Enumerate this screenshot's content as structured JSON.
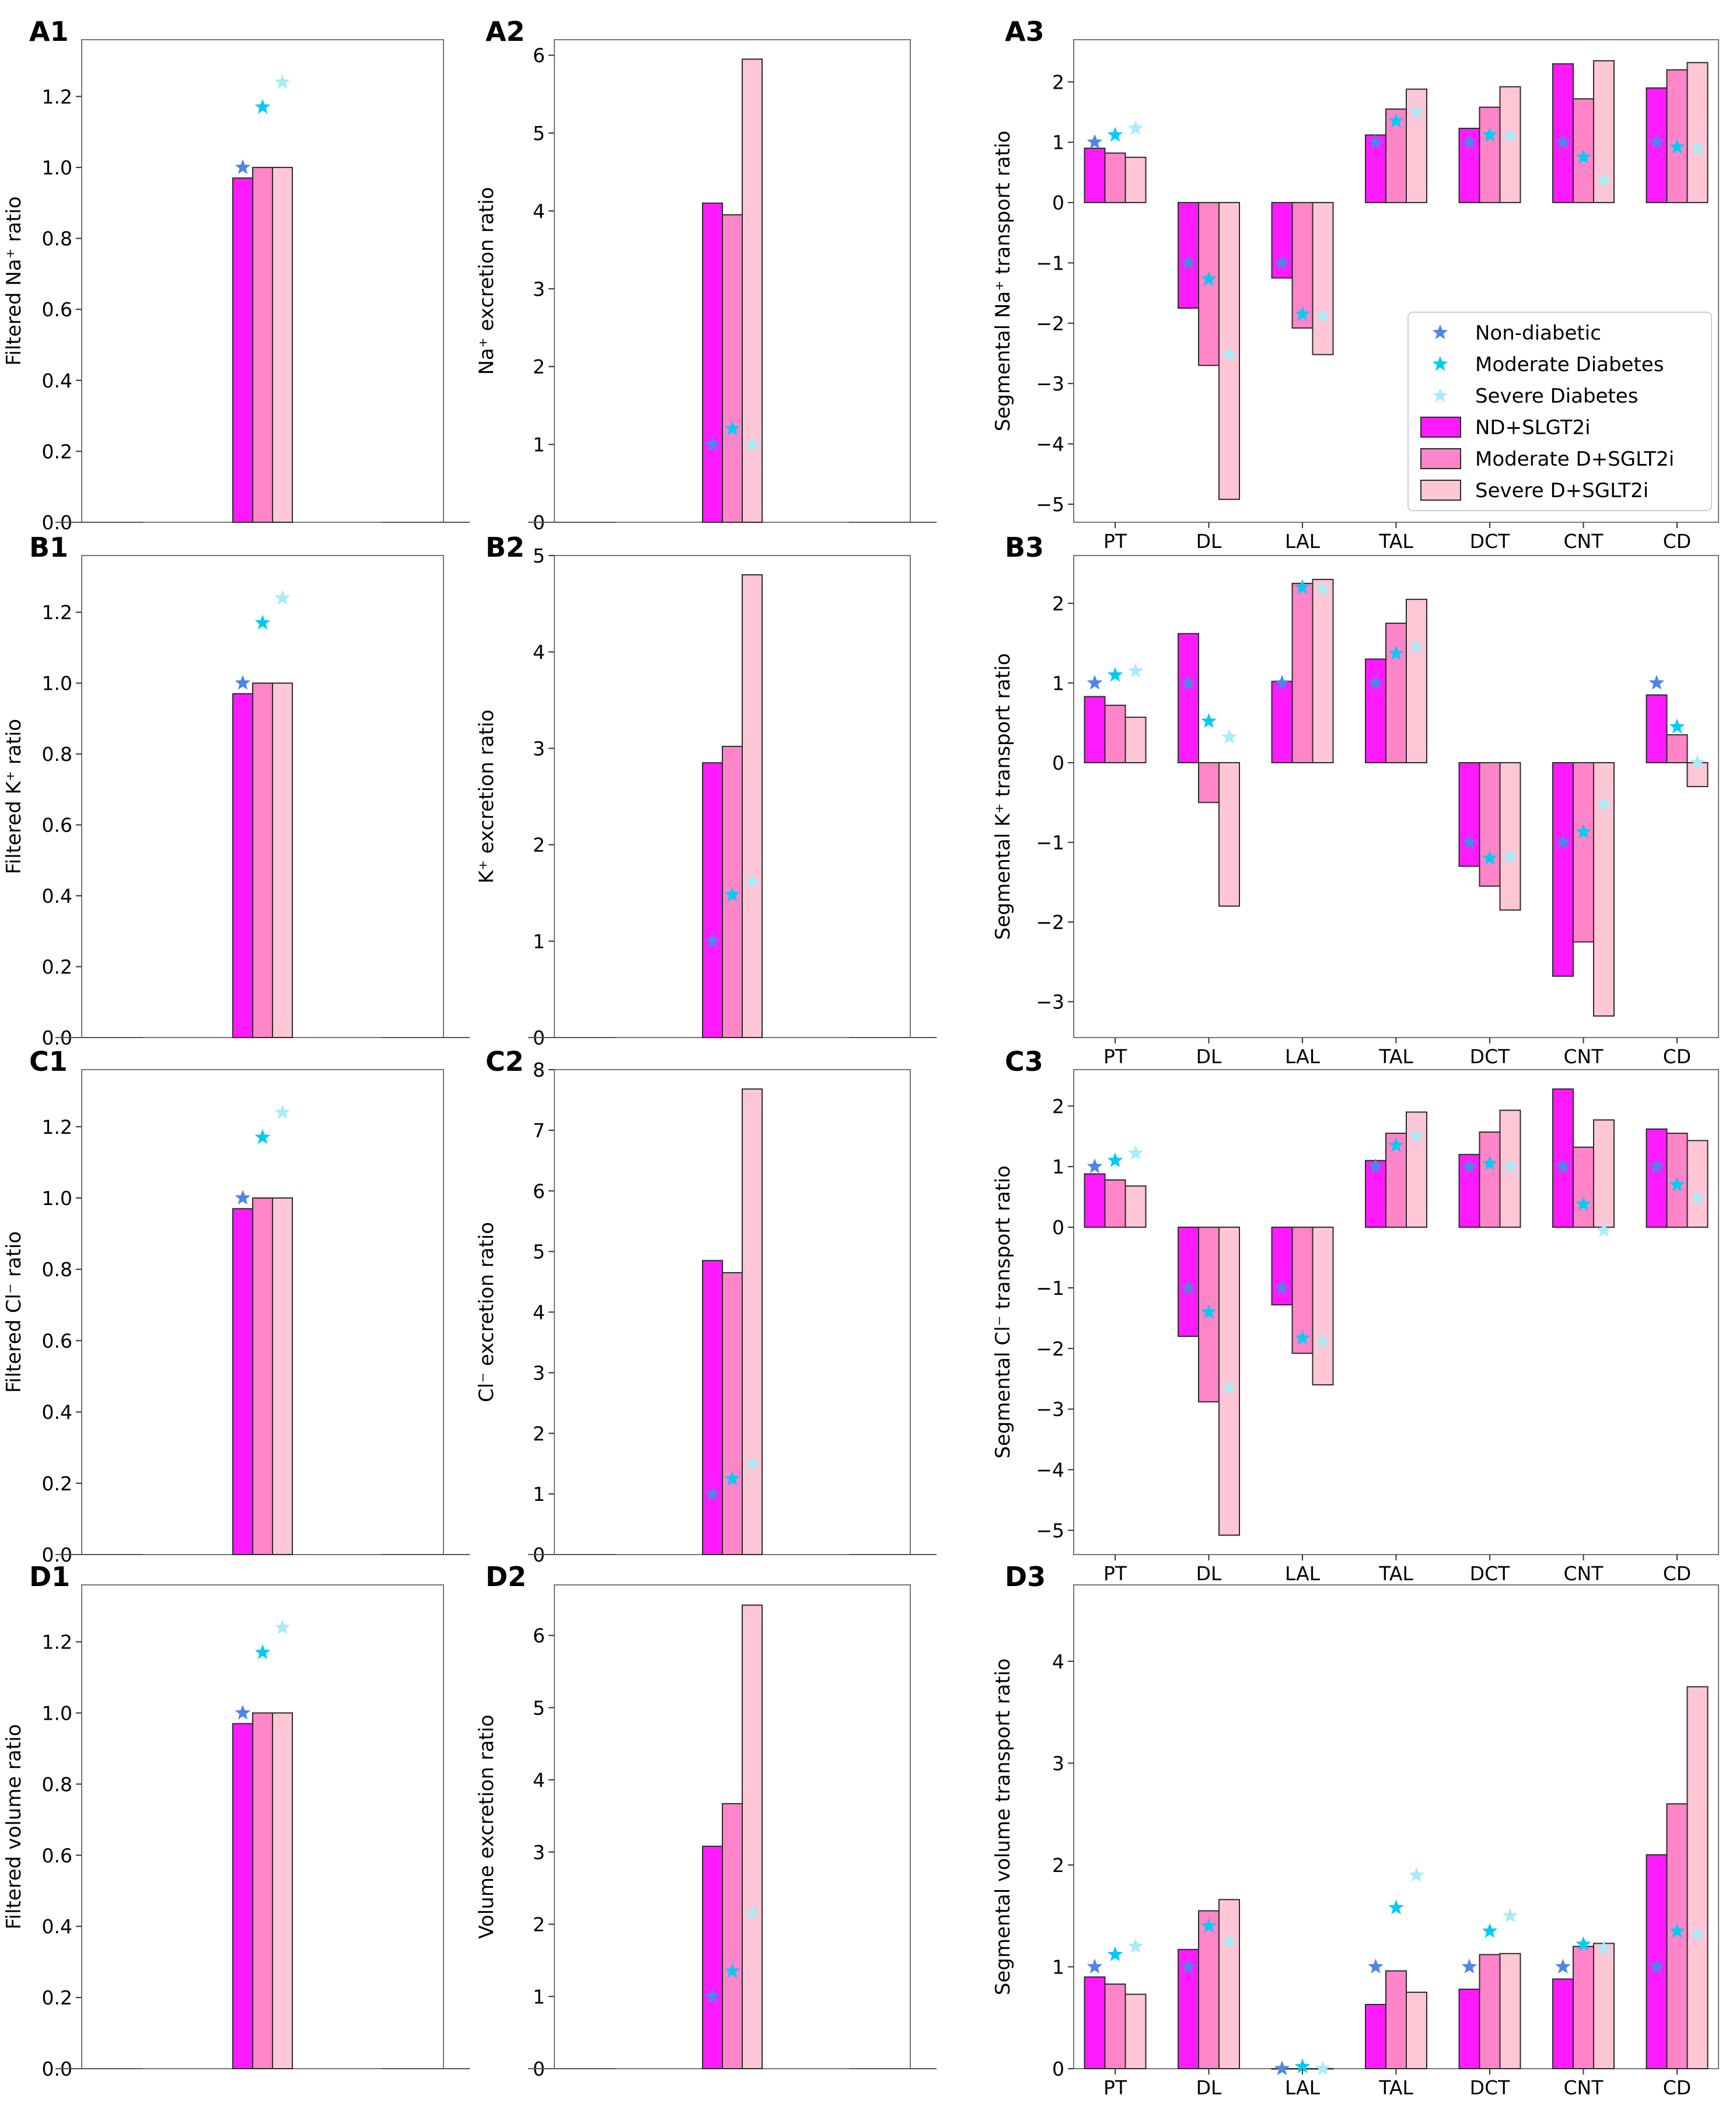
{
  "colors": {
    "bar_nd": "#ff1aff",
    "bar_mod": "#ff85c8",
    "bar_sev": "#ffc6d6",
    "star_nd": "#4f85e6",
    "star_mod": "#00ccf2",
    "star_sev": "#a8ecf7",
    "bar_edge": "#2b2b2b"
  },
  "legend": {
    "items": [
      {
        "kind": "star",
        "series": "nd",
        "label": "Non-diabetic"
      },
      {
        "kind": "star",
        "series": "mod",
        "label": "Moderate Diabetes"
      },
      {
        "kind": "star",
        "series": "sev",
        "label": "Severe Diabetes"
      },
      {
        "kind": "bar",
        "series": "nd",
        "label": "ND+SLGT2i"
      },
      {
        "kind": "bar",
        "series": "mod",
        "label": "Moderate D+SGLT2i"
      },
      {
        "kind": "bar",
        "series": "sev",
        "label": "Severe D+SGLT2i"
      }
    ]
  },
  "chart_data": [
    {
      "id": "A1",
      "panel_label": "A1",
      "type": "bar",
      "col": 0,
      "row": 0,
      "ylabel": "Filtered Na⁺ ratio",
      "ylim": [
        0,
        1.36
      ],
      "yticks": [
        0,
        0.2,
        0.4,
        0.6,
        0.8,
        1.0,
        1.2
      ],
      "tick_decimals": 1,
      "categories": [],
      "bars": {
        "nd": [
          0.97
        ],
        "mod": [
          1.0
        ],
        "sev": [
          1.0
        ]
      },
      "stars": {
        "nd": [
          1.0
        ],
        "mod": [
          1.17
        ],
        "sev": [
          1.24
        ]
      }
    },
    {
      "id": "A2",
      "panel_label": "A2",
      "type": "bar",
      "col": 1,
      "row": 0,
      "ylabel": "Na⁺ excretion ratio",
      "ylim": [
        0,
        6.2
      ],
      "yticks": [
        0,
        1,
        2,
        3,
        4,
        5,
        6
      ],
      "tick_decimals": 0,
      "categories": [],
      "bars": {
        "nd": [
          4.1
        ],
        "mod": [
          3.95
        ],
        "sev": [
          5.95
        ]
      },
      "stars": {
        "nd": [
          1.0
        ],
        "mod": [
          1.2
        ],
        "sev": [
          1.0
        ]
      }
    },
    {
      "id": "A3",
      "panel_label": "A3",
      "type": "bar",
      "col": 2,
      "row": 0,
      "ylabel": "Segmental Na⁺ transport ratio",
      "ylim": [
        -5.3,
        2.7
      ],
      "yticks": [
        -5,
        -4,
        -3,
        -2,
        -1,
        0,
        1,
        2
      ],
      "tick_decimals": 0,
      "legend": true,
      "categories": [
        "PT",
        "DL",
        "LAL",
        "TAL",
        "DCT",
        "CNT",
        "CD"
      ],
      "bars": {
        "nd": [
          0.9,
          -1.75,
          -1.25,
          1.12,
          1.23,
          2.3,
          1.9
        ],
        "mod": [
          0.82,
          -2.7,
          -2.08,
          1.55,
          1.58,
          1.72,
          2.2
        ],
        "sev": [
          0.75,
          -4.92,
          -2.52,
          1.88,
          1.92,
          2.35,
          2.32
        ]
      },
      "stars": {
        "nd": [
          1.0,
          -1.0,
          -1.0,
          1.0,
          1.0,
          1.0,
          1.0
        ],
        "mod": [
          1.12,
          -1.27,
          -1.85,
          1.35,
          1.12,
          0.75,
          0.92
        ],
        "sev": [
          1.23,
          -2.52,
          -1.88,
          1.5,
          1.1,
          0.38,
          0.9
        ]
      }
    },
    {
      "id": "B1",
      "panel_label": "B1",
      "type": "bar",
      "col": 0,
      "row": 1,
      "ylabel": "Filtered K⁺ ratio",
      "ylim": [
        0,
        1.36
      ],
      "yticks": [
        0,
        0.2,
        0.4,
        0.6,
        0.8,
        1.0,
        1.2
      ],
      "tick_decimals": 1,
      "categories": [],
      "bars": {
        "nd": [
          0.97
        ],
        "mod": [
          1.0
        ],
        "sev": [
          1.0
        ]
      },
      "stars": {
        "nd": [
          1.0
        ],
        "mod": [
          1.17
        ],
        "sev": [
          1.24
        ]
      }
    },
    {
      "id": "B2",
      "panel_label": "B2",
      "type": "bar",
      "col": 1,
      "row": 1,
      "ylabel": "K⁺ excretion ratio",
      "ylim": [
        0,
        5.0
      ],
      "yticks": [
        0,
        1,
        2,
        3,
        4,
        5
      ],
      "tick_decimals": 0,
      "categories": [],
      "bars": {
        "nd": [
          2.85
        ],
        "mod": [
          3.02
        ],
        "sev": [
          4.8
        ]
      },
      "stars": {
        "nd": [
          1.0
        ],
        "mod": [
          1.48
        ],
        "sev": [
          1.62
        ]
      }
    },
    {
      "id": "B3",
      "panel_label": "B3",
      "type": "bar",
      "col": 2,
      "row": 1,
      "ylabel": "Segmental K⁺ transport ratio",
      "ylim": [
        -3.45,
        2.6
      ],
      "yticks": [
        -3,
        -2,
        -1,
        0,
        1,
        2
      ],
      "tick_decimals": 0,
      "categories": [
        "PT",
        "DL",
        "LAL",
        "TAL",
        "DCT",
        "CNT",
        "CD"
      ],
      "bars": {
        "nd": [
          0.83,
          1.62,
          1.02,
          1.3,
          -1.3,
          -2.68,
          0.85
        ],
        "mod": [
          0.72,
          -0.5,
          2.25,
          1.75,
          -1.55,
          -2.25,
          0.35
        ],
        "sev": [
          0.57,
          -1.8,
          2.3,
          2.05,
          -1.85,
          -3.18,
          -0.3
        ]
      },
      "stars": {
        "nd": [
          1.0,
          1.0,
          1.0,
          1.0,
          -1.0,
          -1.0,
          1.0
        ],
        "mod": [
          1.1,
          0.52,
          2.2,
          1.37,
          -1.2,
          -0.87,
          0.45
        ],
        "sev": [
          1.15,
          0.32,
          2.18,
          1.45,
          -1.18,
          -0.52,
          0.0
        ]
      }
    },
    {
      "id": "C1",
      "panel_label": "C1",
      "type": "bar",
      "col": 0,
      "row": 2,
      "ylabel": "Filtered Cl⁻ ratio",
      "ylim": [
        0,
        1.36
      ],
      "yticks": [
        0,
        0.2,
        0.4,
        0.6,
        0.8,
        1.0,
        1.2
      ],
      "tick_decimals": 1,
      "categories": [],
      "bars": {
        "nd": [
          0.97
        ],
        "mod": [
          1.0
        ],
        "sev": [
          1.0
        ]
      },
      "stars": {
        "nd": [
          1.0
        ],
        "mod": [
          1.17
        ],
        "sev": [
          1.24
        ]
      }
    },
    {
      "id": "C2",
      "panel_label": "C2",
      "type": "bar",
      "col": 1,
      "row": 2,
      "ylabel": "Cl⁻ excretion ratio",
      "ylim": [
        0,
        8.0
      ],
      "yticks": [
        0,
        1,
        2,
        3,
        4,
        5,
        6,
        7,
        8
      ],
      "tick_decimals": 0,
      "categories": [],
      "bars": {
        "nd": [
          4.85
        ],
        "mod": [
          4.65
        ],
        "sev": [
          7.68
        ]
      },
      "stars": {
        "nd": [
          1.0
        ],
        "mod": [
          1.25
        ],
        "sev": [
          1.5
        ]
      }
    },
    {
      "id": "C3",
      "panel_label": "C3",
      "type": "bar",
      "col": 2,
      "row": 2,
      "ylabel": "Segmental Cl⁻ transport ratio",
      "ylim": [
        -5.4,
        2.6
      ],
      "yticks": [
        -5,
        -4,
        -3,
        -2,
        -1,
        0,
        1,
        2
      ],
      "tick_decimals": 0,
      "categories": [
        "PT",
        "DL",
        "LAL",
        "TAL",
        "DCT",
        "CNT",
        "CD"
      ],
      "bars": {
        "nd": [
          0.88,
          -1.8,
          -1.28,
          1.1,
          1.2,
          2.28,
          1.62
        ],
        "mod": [
          0.78,
          -2.88,
          -2.08,
          1.55,
          1.57,
          1.32,
          1.55
        ],
        "sev": [
          0.68,
          -5.08,
          -2.6,
          1.9,
          1.93,
          1.77,
          1.43
        ]
      },
      "stars": {
        "nd": [
          1.0,
          -1.0,
          -1.0,
          1.0,
          1.0,
          1.0,
          1.0
        ],
        "mod": [
          1.1,
          -1.4,
          -1.83,
          1.35,
          1.05,
          0.38,
          0.7
        ],
        "sev": [
          1.22,
          -2.65,
          -1.88,
          1.5,
          1.0,
          -0.05,
          0.48
        ]
      }
    },
    {
      "id": "D1",
      "panel_label": "D1",
      "type": "bar",
      "col": 0,
      "row": 3,
      "ylabel": "Filtered volume ratio",
      "ylim": [
        0,
        1.36
      ],
      "yticks": [
        0,
        0.2,
        0.4,
        0.6,
        0.8,
        1.0,
        1.2
      ],
      "tick_decimals": 1,
      "categories": [],
      "bars": {
        "nd": [
          0.97
        ],
        "mod": [
          1.0
        ],
        "sev": [
          1.0
        ]
      },
      "stars": {
        "nd": [
          1.0
        ],
        "mod": [
          1.17
        ],
        "sev": [
          1.24
        ]
      }
    },
    {
      "id": "D2",
      "panel_label": "D2",
      "type": "bar",
      "col": 1,
      "row": 3,
      "ylabel": "Volume excretion ratio",
      "ylim": [
        0,
        6.7
      ],
      "yticks": [
        0,
        1,
        2,
        3,
        4,
        5,
        6
      ],
      "tick_decimals": 0,
      "categories": [],
      "bars": {
        "nd": [
          3.08
        ],
        "mod": [
          3.67
        ],
        "sev": [
          6.42
        ]
      },
      "stars": {
        "nd": [
          1.0
        ],
        "mod": [
          1.35
        ],
        "sev": [
          2.15
        ]
      }
    },
    {
      "id": "D3",
      "panel_label": "D3",
      "type": "bar",
      "col": 2,
      "row": 3,
      "ylabel": "Segmental volume transport ratio",
      "ylim": [
        0,
        4.75
      ],
      "yticks": [
        0,
        1,
        2,
        3,
        4
      ],
      "tick_decimals": 0,
      "categories": [
        "PT",
        "DL",
        "LAL",
        "TAL",
        "DCT",
        "CNT",
        "CD"
      ],
      "bars": {
        "nd": [
          0.9,
          1.17,
          0.0,
          0.63,
          0.78,
          0.88,
          2.1
        ],
        "mod": [
          0.83,
          1.55,
          0.0,
          0.96,
          1.12,
          1.2,
          2.6
        ],
        "sev": [
          0.73,
          1.66,
          0.0,
          0.75,
          1.13,
          1.23,
          3.75
        ]
      },
      "stars": {
        "nd": [
          1.0,
          1.0,
          0.0,
          1.0,
          1.0,
          1.0,
          1.0
        ],
        "mod": [
          1.12,
          1.4,
          0.02,
          1.58,
          1.35,
          1.22,
          1.35
        ],
        "sev": [
          1.2,
          1.25,
          0.0,
          1.9,
          1.5,
          1.18,
          1.32
        ]
      }
    }
  ]
}
